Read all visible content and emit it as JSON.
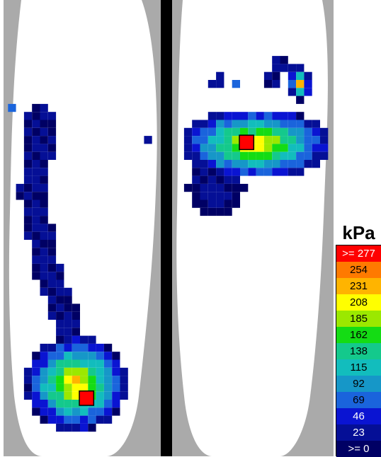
{
  "legend": {
    "unit": "kPa",
    "bins": [
      {
        "label": ">= 277",
        "color": "#ff0000",
        "text_color": "#ffffff"
      },
      {
        "label": "254",
        "color": "#ff7a00",
        "text_color": "#000000"
      },
      {
        "label": "231",
        "color": "#ffb400",
        "text_color": "#000000"
      },
      {
        "label": "208",
        "color": "#ffff00",
        "text_color": "#000000"
      },
      {
        "label": "185",
        "color": "#9be800",
        "text_color": "#000000"
      },
      {
        "label": "162",
        "color": "#14dc14",
        "text_color": "#000000"
      },
      {
        "label": "138",
        "color": "#14c98c",
        "text_color": "#000000"
      },
      {
        "label": "115",
        "color": "#12bdbd",
        "text_color": "#000000"
      },
      {
        "label": "92",
        "color": "#1697c8",
        "text_color": "#000000"
      },
      {
        "label": "69",
        "color": "#1a64dc",
        "text_color": "#000000"
      },
      {
        "label": "46",
        "color": "#0a14d2",
        "text_color": "#ffffff"
      },
      {
        "label": "23",
        "color": "#050f96",
        "text_color": "#ffffff"
      },
      {
        "label": ">= 0",
        "color": "#000064",
        "text_color": "#ffffff"
      }
    ]
  },
  "chart_data": {
    "type": "heatmap",
    "title": "",
    "xlabel": "",
    "ylabel": "",
    "unit": "kPa",
    "series": [
      {
        "peak_value": 277,
        "peak_marker": true,
        "blobs": [
          {
            "shape": "strip",
            "points": [
              [
                4.5,
                14.5
              ],
              [
                4.5,
                18.5
              ],
              [
                3.5,
                23.5
              ],
              [
                4.5,
                28.5
              ],
              [
                5.5,
                33.5
              ],
              [
                7.5,
                38.5
              ],
              [
                8.5,
                43.5
              ]
            ],
            "width": 3.5,
            "value": 32
          },
          {
            "shape": "ellipse",
            "center": [
              9.0,
              47.5
            ],
            "radius": [
              6.4,
              6.0
            ],
            "value": 250
          },
          {
            "shape": "ellipse",
            "center": [
              8.7,
              48.8
            ],
            "radius": [
              1.7,
              1.6
            ],
            "value": 290
          }
        ],
        "marker_cell": [
          10,
          49
        ],
        "extra_cells": [
          [
            1,
            13,
            90
          ],
          [
            18,
            17,
            25
          ]
        ]
      },
      {
        "peak_value": 277,
        "peak_marker": true,
        "blobs": [
          {
            "shape": "ellipse",
            "center": [
              31.5,
              17.5
            ],
            "radius": [
              9.5,
              4.5
            ],
            "value": 250
          },
          {
            "shape": "ellipse",
            "center": [
              26.5,
              23.0
            ],
            "radius": [
              3.5,
              4.0
            ],
            "value": 45
          },
          {
            "shape": "strip",
            "points": [
              [
                33.5,
                9.5
              ],
              [
                34.5,
                7.5
              ],
              [
                36.5,
                8.5
              ],
              [
                37.5,
                10.5
              ]
            ],
            "width": 2.2,
            "value": 35
          },
          {
            "shape": "ellipse",
            "center": [
              37.0,
              10.0
            ],
            "radius": [
              1.3,
              2.0
            ],
            "value": 240
          },
          {
            "shape": "ellipse",
            "center": [
              29.8,
              17.2
            ],
            "radius": [
              1.6,
              1.3
            ],
            "value": 280
          }
        ],
        "marker_cell": [
          30,
          17
        ],
        "extra_cells": [
          [
            26,
            10,
            35
          ],
          [
            27,
            10,
            35
          ],
          [
            29,
            10,
            90
          ],
          [
            27,
            9,
            30
          ]
        ]
      }
    ]
  }
}
